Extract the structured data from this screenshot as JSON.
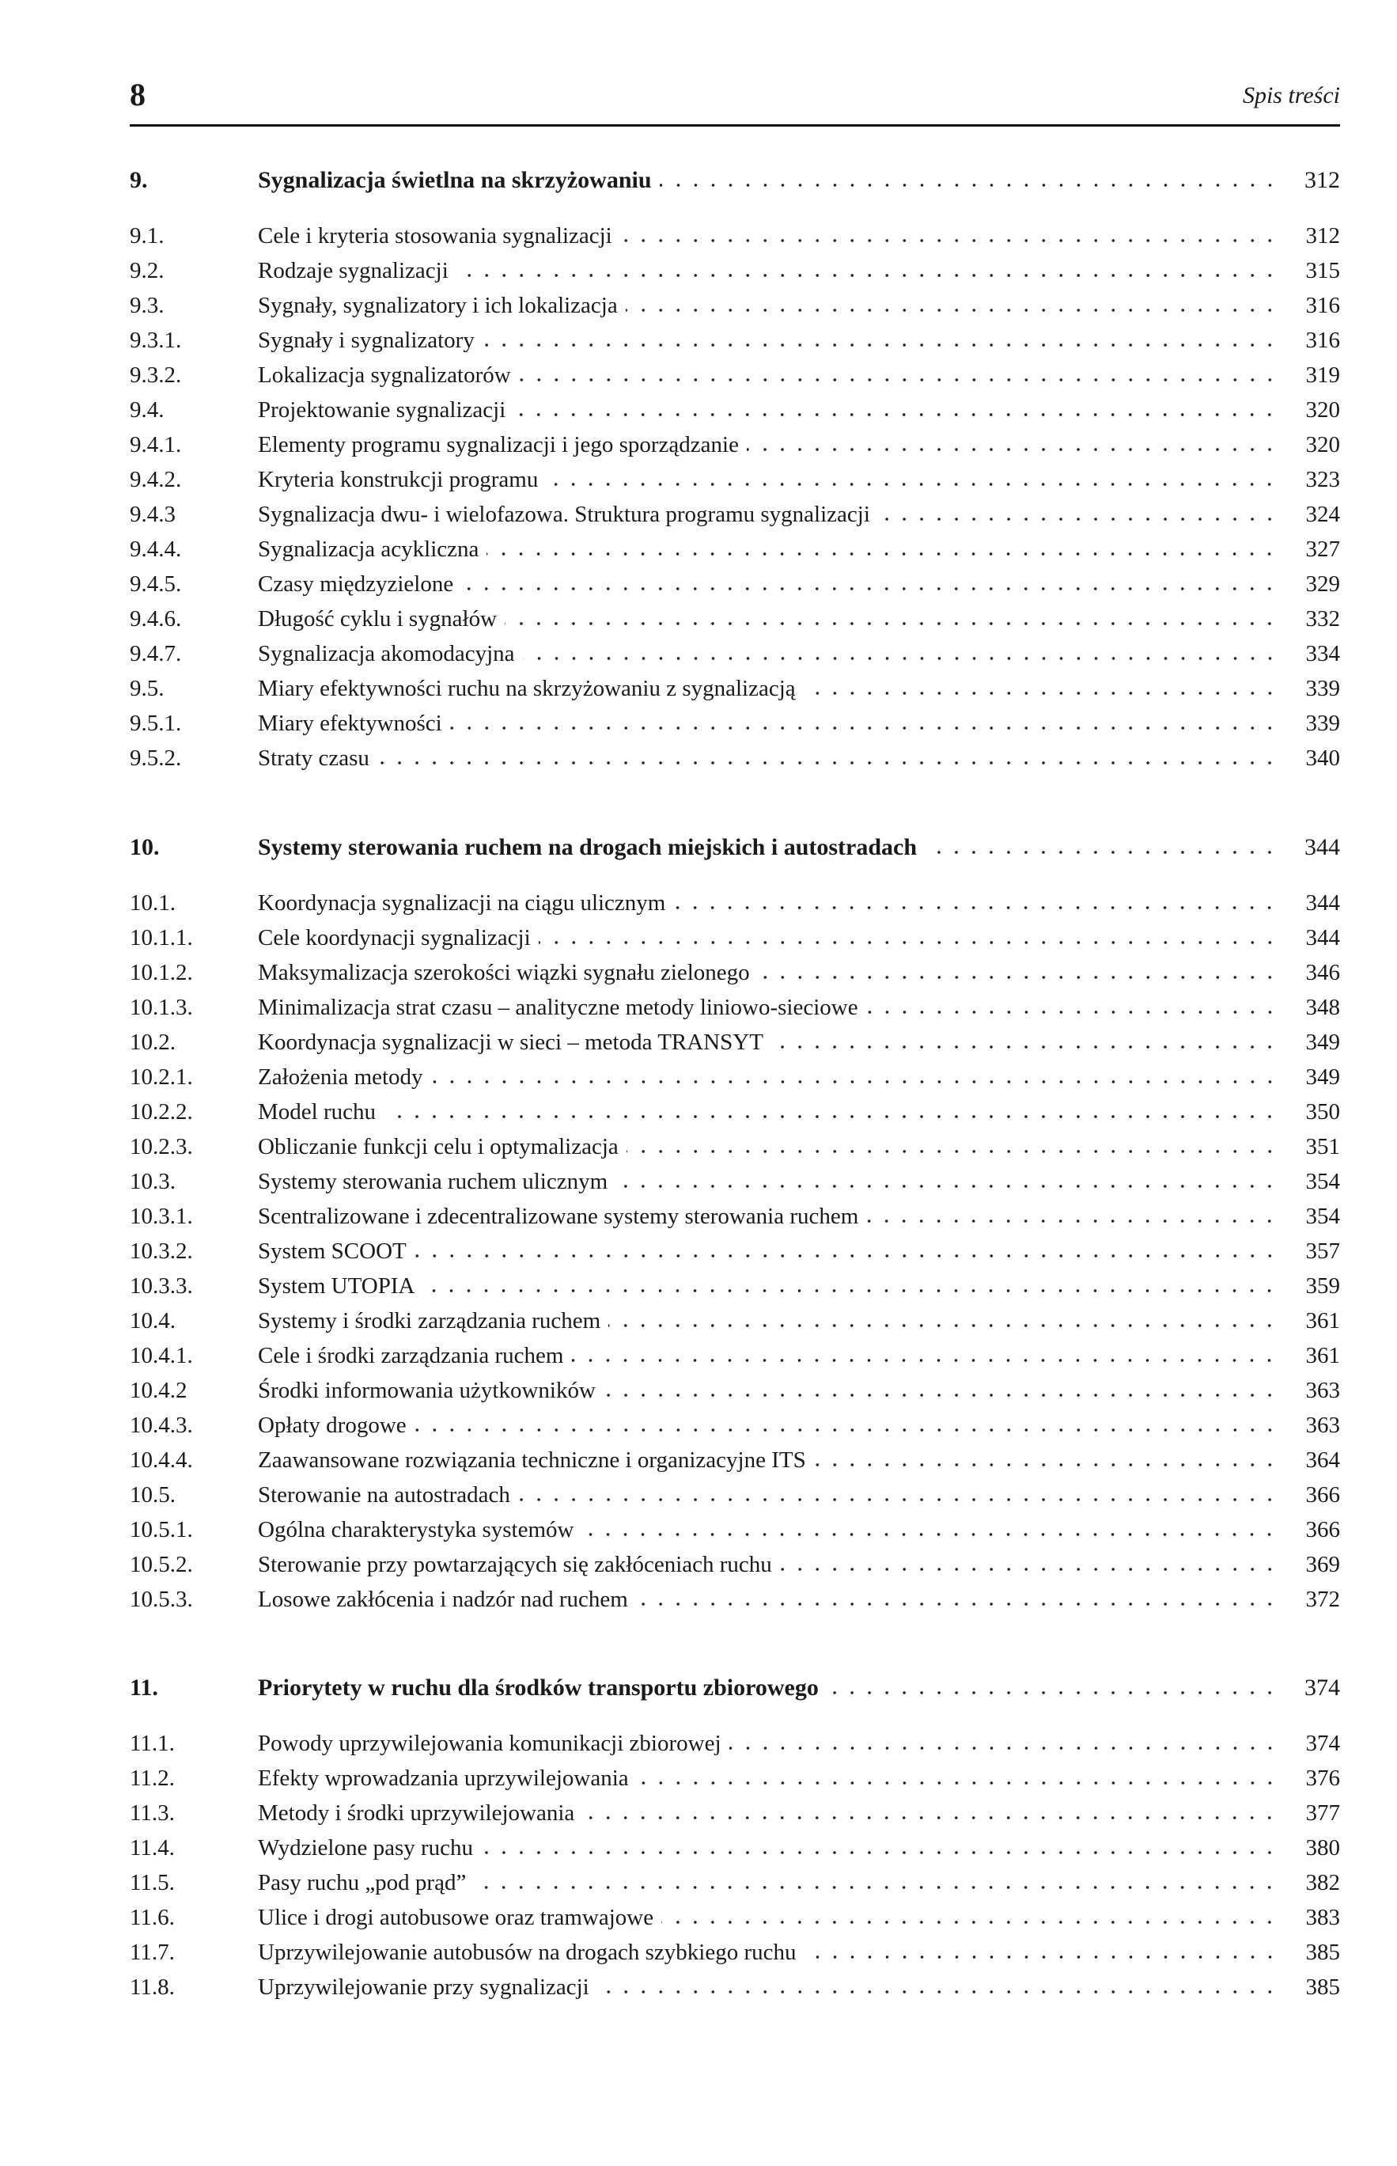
{
  "header": {
    "page_number": "8",
    "running_title": "Spis treści"
  },
  "chapters": [
    {
      "number": "9.",
      "title": "Sygnalizacja świetlna na skrzyżowaniu",
      "page": "312",
      "entries": [
        {
          "number": "9.1.",
          "title": "Cele i kryteria stosowania sygnalizacji",
          "page": "312"
        },
        {
          "number": "9.2.",
          "title": "Rodzaje sygnalizacji",
          "page": "315"
        },
        {
          "number": "9.3.",
          "title": "Sygnały, sygnalizatory i ich lokalizacja",
          "page": "316"
        },
        {
          "number": "9.3.1.",
          "title": "Sygnały i sygnalizatory",
          "page": "316"
        },
        {
          "number": "9.3.2.",
          "title": "Lokalizacja sygnalizatorów",
          "page": "319"
        },
        {
          "number": "9.4.",
          "title": "Projektowanie sygnalizacji",
          "page": "320"
        },
        {
          "number": "9.4.1.",
          "title": "Elementy programu sygnalizacji i jego sporządzanie",
          "page": "320"
        },
        {
          "number": "9.4.2.",
          "title": "Kryteria konstrukcji programu",
          "page": "323"
        },
        {
          "number": "9.4.3",
          "title": "Sygnalizacja dwu- i wielofazowa. Struktura programu sygnalizacji",
          "page": "324"
        },
        {
          "number": "9.4.4.",
          "title": "Sygnalizacja acykliczna",
          "page": "327"
        },
        {
          "number": "9.4.5.",
          "title": "Czasy międzyzielone",
          "page": "329"
        },
        {
          "number": "9.4.6.",
          "title": "Długość cyklu i sygnałów",
          "page": "332"
        },
        {
          "number": "9.4.7.",
          "title": "Sygnalizacja akomodacyjna",
          "page": "334"
        },
        {
          "number": "9.5.",
          "title": "Miary efektywności ruchu na skrzyżowaniu z sygnalizacją",
          "page": "339"
        },
        {
          "number": "9.5.1.",
          "title": "Miary efektywności",
          "page": "339"
        },
        {
          "number": "9.5.2.",
          "title": "Straty czasu",
          "page": "340"
        }
      ]
    },
    {
      "number": "10.",
      "title": "Systemy sterowania ruchem na drogach miejskich i autostradach",
      "page": "344",
      "entries": [
        {
          "number": "10.1.",
          "title": "Koordynacja sygnalizacji na ciągu ulicznym",
          "page": "344"
        },
        {
          "number": "10.1.1.",
          "title": "Cele koordynacji sygnalizacji",
          "page": "344"
        },
        {
          "number": "10.1.2.",
          "title": "Maksymalizacja szerokości wiązki sygnału zielonego",
          "page": "346"
        },
        {
          "number": "10.1.3.",
          "title": "Minimalizacja strat czasu – analityczne metody liniowo-sieciowe",
          "page": "348"
        },
        {
          "number": "10.2.",
          "title": "Koordynacja sygnalizacji w sieci – metoda TRANSYT",
          "page": "349"
        },
        {
          "number": "10.2.1.",
          "title": "Założenia metody",
          "page": "349"
        },
        {
          "number": "10.2.2.",
          "title": "Model ruchu",
          "page": "350"
        },
        {
          "number": "10.2.3.",
          "title": "Obliczanie funkcji celu i optymalizacja",
          "page": "351"
        },
        {
          "number": "10.3.",
          "title": "Systemy sterowania ruchem ulicznym",
          "page": "354"
        },
        {
          "number": "10.3.1.",
          "title": "Scentralizowane i zdecentralizowane systemy sterowania ruchem",
          "page": "354"
        },
        {
          "number": "10.3.2.",
          "title": "System SCOOT",
          "page": "357"
        },
        {
          "number": "10.3.3.",
          "title": "System UTOPIA",
          "page": "359"
        },
        {
          "number": "10.4.",
          "title": "Systemy i środki zarządzania ruchem",
          "page": "361"
        },
        {
          "number": "10.4.1.",
          "title": "Cele i środki zarządzania ruchem",
          "page": "361"
        },
        {
          "number": "10.4.2",
          "title": "Środki informowania użytkowników",
          "page": "363"
        },
        {
          "number": "10.4.3.",
          "title": "Opłaty drogowe",
          "page": "363"
        },
        {
          "number": "10.4.4.",
          "title": "Zaawansowane rozwiązania techniczne i organizacyjne ITS",
          "page": "364"
        },
        {
          "number": "10.5.",
          "title": "Sterowanie na autostradach",
          "page": "366"
        },
        {
          "number": "10.5.1.",
          "title": "Ogólna charakterystyka systemów",
          "page": "366"
        },
        {
          "number": "10.5.2.",
          "title": "Sterowanie przy powtarzających się zakłóceniach ruchu",
          "page": "369"
        },
        {
          "number": "10.5.3.",
          "title": "Losowe zakłócenia i nadzór nad ruchem",
          "page": "372"
        }
      ]
    },
    {
      "number": "11.",
      "title": "Priorytety w ruchu dla środków transportu zbiorowego",
      "page": "374",
      "entries": [
        {
          "number": "11.1.",
          "title": "Powody uprzywilejowania komunikacji zbiorowej",
          "page": "374"
        },
        {
          "number": "11.2.",
          "title": "Efekty wprowadzania uprzywilejowania",
          "page": "376"
        },
        {
          "number": "11.3.",
          "title": "Metody i środki uprzywilejowania",
          "page": "377"
        },
        {
          "number": "11.4.",
          "title": "Wydzielone pasy ruchu",
          "page": "380"
        },
        {
          "number": "11.5.",
          "title": "Pasy ruchu „pod prąd”",
          "page": "382"
        },
        {
          "number": "11.6.",
          "title": "Ulice i drogi autobusowe oraz tramwajowe",
          "page": "383"
        },
        {
          "number": "11.7.",
          "title": "Uprzywilejowanie autobusów na drogach szybkiego ruchu",
          "page": "385"
        },
        {
          "number": "11.8.",
          "title": "Uprzywilejowanie przy sygnalizacji",
          "page": "385"
        }
      ]
    }
  ]
}
